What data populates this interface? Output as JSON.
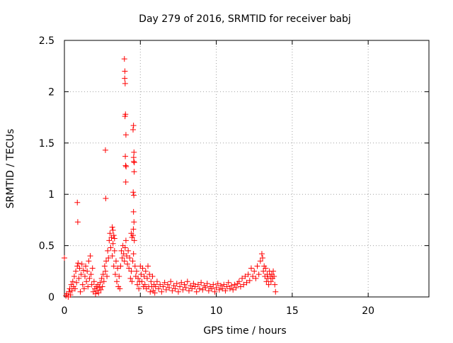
{
  "chart_data": {
    "type": "scatter",
    "title": "Day 279 of 2016, SRMTID for receiver babj",
    "xlabel": "GPS time / hours",
    "ylabel": "SRMTID / TECUs",
    "xlim": [
      0,
      24
    ],
    "ylim": [
      0,
      2.5
    ],
    "xticks": [
      0,
      5,
      10,
      15,
      20
    ],
    "xtick_labels": [
      "0",
      "5",
      "10",
      "15",
      "20"
    ],
    "yticks": [
      0,
      0.5,
      1,
      1.5,
      2,
      2.5
    ],
    "ytick_labels": [
      "0",
      "0.5",
      "1",
      "1.5",
      "2",
      "2.5"
    ],
    "grid": true,
    "marker": "+",
    "colors": {
      "series": "#ff0000",
      "grid": "#a0a0a0",
      "axis": "#000000"
    },
    "series": [
      {
        "name": "SRMTID",
        "points": [
          [
            0.0,
            0.38
          ],
          [
            0.1,
            0.01
          ],
          [
            0.15,
            0.03
          ],
          [
            0.25,
            0.0
          ],
          [
            0.3,
            0.05
          ],
          [
            0.35,
            0.08
          ],
          [
            0.4,
            0.02
          ],
          [
            0.45,
            0.12
          ],
          [
            0.5,
            0.06
          ],
          [
            0.55,
            0.15
          ],
          [
            0.6,
            0.1
          ],
          [
            0.65,
            0.2
          ],
          [
            0.7,
            0.08
          ],
          [
            0.75,
            0.25
          ],
          [
            0.8,
            0.14
          ],
          [
            0.85,
            0.3
          ],
          [
            0.9,
            0.33
          ],
          [
            0.95,
            0.18
          ],
          [
            1.0,
            0.28
          ],
          [
            1.05,
            0.05
          ],
          [
            1.1,
            0.22
          ],
          [
            1.15,
            0.32
          ],
          [
            1.2,
            0.12
          ],
          [
            1.25,
            0.26
          ],
          [
            1.3,
            0.08
          ],
          [
            1.35,
            0.2
          ],
          [
            1.4,
            0.3
          ],
          [
            1.45,
            0.15
          ],
          [
            1.5,
            0.25
          ],
          [
            1.55,
            0.1
          ],
          [
            1.6,
            0.35
          ],
          [
            1.65,
            0.18
          ],
          [
            1.7,
            0.4
          ],
          [
            1.75,
            0.22
          ],
          [
            1.8,
            0.12
          ],
          [
            1.85,
            0.28
          ],
          [
            1.9,
            0.05
          ],
          [
            1.95,
            0.15
          ],
          [
            2.0,
            0.08
          ],
          [
            2.05,
            0.03
          ],
          [
            2.1,
            0.1
          ],
          [
            2.15,
            0.06
          ],
          [
            2.2,
            0.12
          ],
          [
            2.25,
            0.04
          ],
          [
            2.3,
            0.09
          ],
          [
            2.35,
            0.14
          ],
          [
            2.4,
            0.07
          ],
          [
            2.45,
            0.18
          ],
          [
            2.5,
            0.1
          ],
          [
            2.55,
            0.22
          ],
          [
            2.6,
            0.15
          ],
          [
            2.65,
            0.3
          ],
          [
            2.7,
            0.25
          ],
          [
            2.75,
            0.35
          ],
          [
            2.8,
            0.2
          ],
          [
            2.85,
            0.45
          ],
          [
            2.9,
            0.38
          ],
          [
            2.95,
            0.55
          ],
          [
            3.0,
            0.62
          ],
          [
            3.05,
            0.48
          ],
          [
            3.1,
            0.58
          ],
          [
            3.15,
            0.4
          ],
          [
            3.2,
            0.52
          ],
          [
            3.25,
            0.3
          ],
          [
            3.3,
            0.45
          ],
          [
            3.35,
            0.22
          ],
          [
            3.4,
            0.35
          ],
          [
            3.45,
            0.15
          ],
          [
            3.5,
            0.28
          ],
          [
            3.55,
            0.1
          ],
          [
            3.6,
            0.2
          ],
          [
            3.65,
            0.08
          ],
          [
            3.7,
            0.3
          ],
          [
            3.75,
            0.45
          ],
          [
            3.8,
            0.38
          ],
          [
            3.85,
            0.5
          ],
          [
            3.9,
            0.42
          ],
          [
            3.95,
            0.35
          ],
          [
            4.0,
            0.48
          ],
          [
            4.05,
            0.55
          ],
          [
            4.1,
            0.4
          ],
          [
            4.15,
            0.32
          ],
          [
            4.2,
            0.45
          ],
          [
            4.25,
            0.28
          ],
          [
            4.3,
            0.38
          ],
          [
            4.35,
            0.18
          ],
          [
            4.4,
            0.25
          ],
          [
            4.45,
            0.15
          ],
          [
            4.5,
            0.35
          ],
          [
            4.55,
            0.42
          ],
          [
            4.6,
            0.55
          ],
          [
            4.65,
            0.3
          ],
          [
            4.7,
            0.2
          ],
          [
            4.75,
            0.25
          ],
          [
            4.8,
            0.12
          ],
          [
            4.85,
            0.18
          ],
          [
            4.9,
            0.08
          ],
          [
            4.95,
            0.15
          ],
          [
            5.0,
            0.3
          ],
          [
            5.05,
            0.22
          ],
          [
            5.1,
            0.15
          ],
          [
            5.15,
            0.28
          ],
          [
            5.2,
            0.1
          ],
          [
            5.25,
            0.2
          ],
          [
            5.3,
            0.12
          ],
          [
            5.35,
            0.25
          ],
          [
            5.4,
            0.08
          ],
          [
            5.45,
            0.18
          ],
          [
            5.5,
            0.3
          ],
          [
            5.55,
            0.1
          ],
          [
            5.6,
            0.22
          ],
          [
            5.65,
            0.05
          ],
          [
            5.7,
            0.15
          ],
          [
            5.75,
            0.1
          ],
          [
            5.8,
            0.2
          ],
          [
            5.85,
            0.06
          ],
          [
            5.9,
            0.12
          ],
          [
            5.95,
            0.04
          ],
          [
            6.0,
            0.1
          ],
          [
            6.1,
            0.15
          ],
          [
            6.2,
            0.08
          ],
          [
            6.3,
            0.12
          ],
          [
            6.4,
            0.05
          ],
          [
            6.5,
            0.1
          ],
          [
            6.6,
            0.14
          ],
          [
            6.7,
            0.07
          ],
          [
            6.8,
            0.12
          ],
          [
            6.9,
            0.09
          ],
          [
            7.0,
            0.15
          ],
          [
            7.1,
            0.06
          ],
          [
            7.2,
            0.11
          ],
          [
            7.3,
            0.08
          ],
          [
            7.4,
            0.13
          ],
          [
            7.5,
            0.05
          ],
          [
            7.6,
            0.1
          ],
          [
            7.7,
            0.14
          ],
          [
            7.8,
            0.07
          ],
          [
            7.9,
            0.12
          ],
          [
            8.0,
            0.09
          ],
          [
            8.1,
            0.15
          ],
          [
            8.2,
            0.06
          ],
          [
            8.3,
            0.11
          ],
          [
            8.4,
            0.08
          ],
          [
            8.5,
            0.13
          ],
          [
            8.6,
            0.1
          ],
          [
            8.7,
            0.05
          ],
          [
            8.8,
            0.12
          ],
          [
            8.9,
            0.08
          ],
          [
            9.0,
            0.14
          ],
          [
            9.1,
            0.07
          ],
          [
            9.2,
            0.11
          ],
          [
            9.3,
            0.09
          ],
          [
            9.4,
            0.13
          ],
          [
            9.5,
            0.06
          ],
          [
            9.6,
            0.1
          ],
          [
            9.7,
            0.08
          ],
          [
            9.8,
            0.12
          ],
          [
            9.9,
            0.05
          ],
          [
            10.0,
            0.09
          ],
          [
            10.1,
            0.13
          ],
          [
            10.2,
            0.07
          ],
          [
            10.3,
            0.11
          ],
          [
            10.4,
            0.08
          ],
          [
            10.5,
            0.12
          ],
          [
            10.6,
            0.06
          ],
          [
            10.7,
            0.1
          ],
          [
            10.8,
            0.14
          ],
          [
            10.9,
            0.08
          ],
          [
            11.0,
            0.11
          ],
          [
            11.1,
            0.07
          ],
          [
            11.2,
            0.12
          ],
          [
            11.3,
            0.09
          ],
          [
            11.4,
            0.13
          ],
          [
            11.5,
            0.15
          ],
          [
            11.6,
            0.1
          ],
          [
            11.7,
            0.18
          ],
          [
            11.8,
            0.12
          ],
          [
            11.9,
            0.2
          ],
          [
            12.0,
            0.14
          ],
          [
            12.1,
            0.22
          ],
          [
            12.2,
            0.16
          ],
          [
            12.3,
            0.28
          ],
          [
            12.4,
            0.2
          ],
          [
            12.5,
            0.25
          ],
          [
            12.6,
            0.18
          ],
          [
            12.7,
            0.3
          ],
          [
            12.8,
            0.22
          ],
          [
            12.9,
            0.35
          ],
          [
            13.0,
            0.42
          ],
          [
            13.05,
            0.38
          ],
          [
            13.1,
            0.25
          ],
          [
            13.15,
            0.3
          ],
          [
            13.2,
            0.2
          ],
          [
            13.25,
            0.28
          ],
          [
            13.3,
            0.15
          ],
          [
            13.35,
            0.22
          ],
          [
            13.4,
            0.18
          ],
          [
            13.45,
            0.12
          ],
          [
            13.5,
            0.25
          ],
          [
            13.55,
            0.2
          ],
          [
            13.6,
            0.15
          ],
          [
            13.65,
            0.22
          ],
          [
            13.7,
            0.18
          ],
          [
            13.75,
            0.25
          ],
          [
            13.8,
            0.2
          ],
          [
            13.85,
            0.12
          ],
          [
            13.9,
            0.05
          ],
          [
            0.85,
            0.92
          ],
          [
            0.88,
            0.73
          ],
          [
            2.7,
            1.43
          ],
          [
            2.72,
            0.96
          ],
          [
            3.95,
            2.32
          ],
          [
            3.98,
            2.2
          ],
          [
            3.97,
            2.13
          ],
          [
            4.0,
            2.08
          ],
          [
            4.02,
            1.78
          ],
          [
            3.99,
            1.76
          ],
          [
            4.05,
            1.58
          ],
          [
            4.01,
            1.37
          ],
          [
            4.03,
            1.28
          ],
          [
            4.06,
            1.27
          ],
          [
            4.04,
            1.12
          ],
          [
            4.55,
            1.67
          ],
          [
            4.52,
            1.63
          ],
          [
            4.58,
            1.41
          ],
          [
            4.56,
            1.36
          ],
          [
            4.57,
            1.32
          ],
          [
            4.6,
            1.31
          ],
          [
            4.59,
            1.22
          ],
          [
            4.53,
            1.02
          ],
          [
            4.57,
            0.99
          ],
          [
            4.55,
            0.83
          ],
          [
            4.58,
            0.73
          ],
          [
            4.54,
            0.66
          ],
          [
            4.52,
            0.6
          ],
          [
            3.15,
            0.68
          ],
          [
            3.2,
            0.65
          ],
          [
            3.25,
            0.6
          ],
          [
            3.3,
            0.57
          ],
          [
            4.4,
            0.62
          ],
          [
            4.45,
            0.58
          ]
        ]
      }
    ]
  }
}
